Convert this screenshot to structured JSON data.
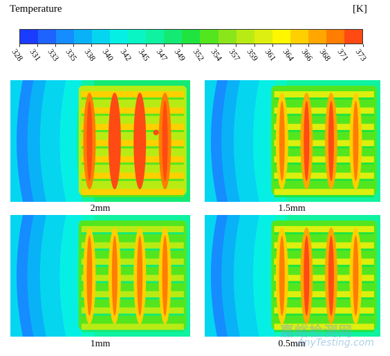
{
  "figure": {
    "colorbar_title": "Temperature",
    "colorbar_unit": "[K]",
    "colorbar_ticks": [
      "328",
      "331",
      "333",
      "335",
      "338",
      "340",
      "342",
      "345",
      "347",
      "349",
      "352",
      "354",
      "357",
      "359",
      "361",
      "364",
      "366",
      "368",
      "371",
      "373"
    ],
    "colorbar_colors": [
      "#1a3cff",
      "#1f63ff",
      "#158cff",
      "#09b2f7",
      "#06d5f0",
      "#06efe5",
      "#0af5c4",
      "#0ff2a0",
      "#14ea73",
      "#1fe43f",
      "#53e61e",
      "#8ae51a",
      "#b8eb14",
      "#dcef0e",
      "#fff700",
      "#ffd000",
      "#ffa600",
      "#ff7d00",
      "#ff4a14"
    ],
    "panels": [
      {
        "caption": "2mm",
        "intensity": 1.0
      },
      {
        "caption": "1.5mm",
        "intensity": 0.55
      },
      {
        "caption": "1mm",
        "intensity": 0.45
      },
      {
        "caption": "0.5mm",
        "intensity": 0.6
      }
    ]
  },
  "watermark": {
    "logo_text": "嘉峪检测网",
    "site_text": "AnyTesting.com"
  }
}
